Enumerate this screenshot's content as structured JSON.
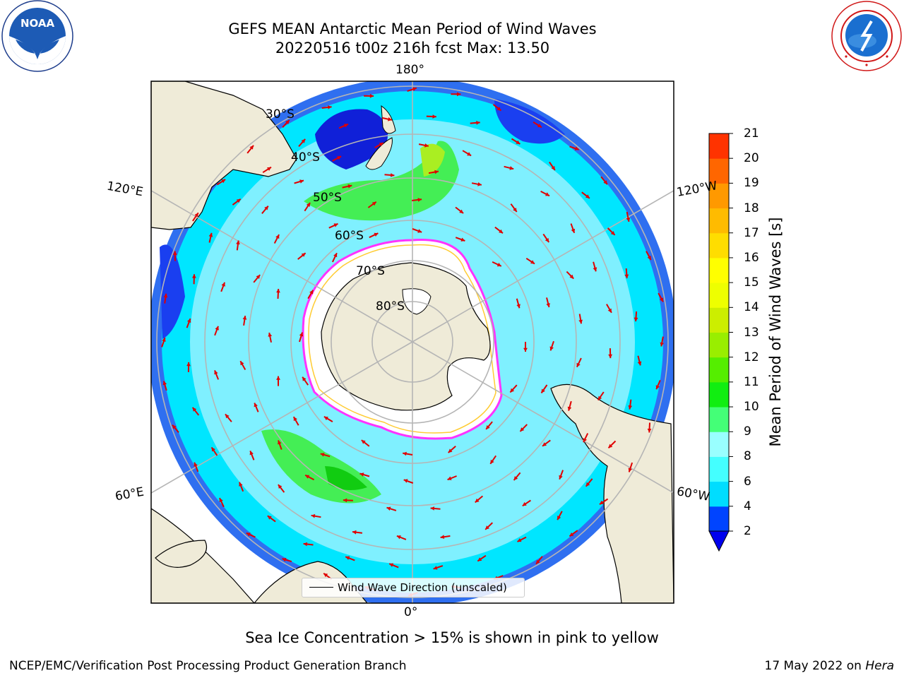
{
  "header": {
    "title_line1": "GEFS MEAN Antarctic Mean Period of Wind Waves",
    "title_line2": "20220516 t00z 216h fcst   Max: 13.50"
  },
  "map": {
    "projection": "south-polar-stereographic",
    "lon_labels": {
      "top": "180°",
      "bottom": "0°",
      "upper_left": "120°E",
      "upper_right": "120°W",
      "lower_left": "60°E",
      "lower_right": "60°W"
    },
    "lat_labels": [
      "30°S",
      "40°S",
      "50°S",
      "60°S",
      "70°S",
      "80°S"
    ],
    "land_color": "#efebd8",
    "ice_interior_color": "#ffffff",
    "ice_edge_colors": [
      "#ff33ff",
      "#ffcc33"
    ],
    "arrow_color": "#e00000",
    "grid_color": "#b5b5b5"
  },
  "legend": {
    "label": "Wind Wave Direction (unscaled)"
  },
  "colorbar": {
    "label": "Mean Period of Wind Waves [s]",
    "ticks": [
      "2",
      "4",
      "6",
      "8",
      "9",
      "10",
      "11",
      "12",
      "13",
      "14",
      "15",
      "16",
      "17",
      "18",
      "19",
      "20",
      "21"
    ],
    "colors": [
      "#0044ff",
      "#00ddff",
      "#44ffff",
      "#99ffff",
      "#44ff77",
      "#11ee11",
      "#55ee00",
      "#99ee00",
      "#ccee00",
      "#eeff00",
      "#ffff00",
      "#ffdd00",
      "#ffbb00",
      "#ff9900",
      "#ff6600",
      "#ff3300"
    ],
    "under_color": "#0000ee"
  },
  "subtitle": "Sea Ice Concentration > 15% is shown in pink to yellow",
  "footer": {
    "left": "NCEP/EMC/Verification Post Processing Product Generation Branch",
    "date": "17 May 2022 on ",
    "host": "Hera"
  },
  "logos": {
    "left": "noaa-logo",
    "left_text": "NOAA",
    "right": "nws-logo"
  }
}
